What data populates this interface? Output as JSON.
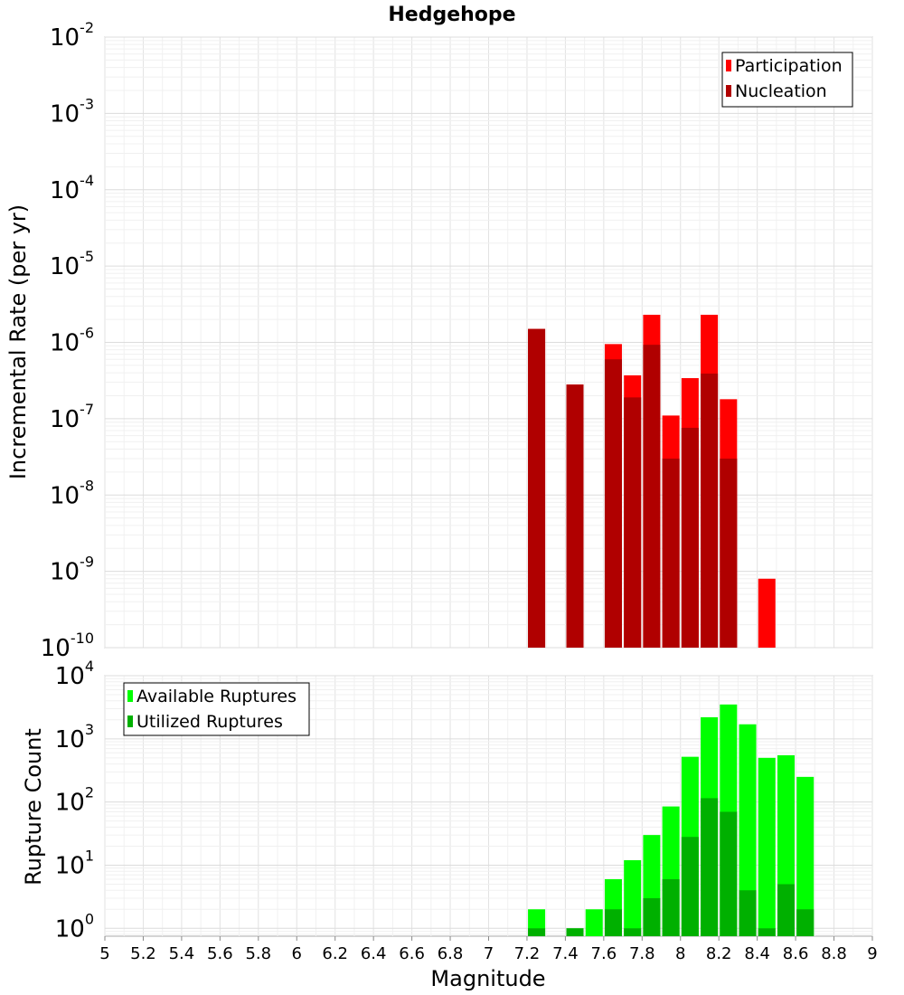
{
  "chart_data": [
    {
      "type": "bar",
      "title": "Hedgehope",
      "xlabel": "",
      "ylabel": "Incremental Rate (per yr)",
      "yscale": "log",
      "ylim": [
        1e-10,
        0.01
      ],
      "xlim": [
        5,
        9
      ],
      "y_ticks": [
        {
          "base": "10",
          "exp": "-2",
          "value": 0.01
        },
        {
          "base": "10",
          "exp": "-3",
          "value": 0.001
        },
        {
          "base": "10",
          "exp": "-4",
          "value": 0.0001
        },
        {
          "base": "10",
          "exp": "-5",
          "value": 1e-05
        },
        {
          "base": "10",
          "exp": "-6",
          "value": 1e-06
        },
        {
          "base": "10",
          "exp": "-7",
          "value": 1e-07
        },
        {
          "base": "10",
          "exp": "-8",
          "value": 1e-08
        },
        {
          "base": "10",
          "exp": "-9",
          "value": 1e-09
        },
        {
          "base": "10",
          "exp": "-10",
          "value": 1e-10
        }
      ],
      "grid": true,
      "legend_position": "top-right",
      "legend": [
        {
          "label": "Participation",
          "color": "#ff0000"
        },
        {
          "label": "Nucleation",
          "color": "#b00000"
        }
      ],
      "series": [
        {
          "name": "Participation",
          "color": "#ff0000",
          "points": [
            {
              "x": 7.25,
              "y": 1.5e-06
            },
            {
              "x": 7.45,
              "y": 2.8e-07
            },
            {
              "x": 7.65,
              "y": 9.5e-07
            },
            {
              "x": 7.75,
              "y": 3.7e-07
            },
            {
              "x": 7.85,
              "y": 2.3e-06
            },
            {
              "x": 7.95,
              "y": 1.1e-07
            },
            {
              "x": 8.05,
              "y": 3.4e-07
            },
            {
              "x": 8.15,
              "y": 2.3e-06
            },
            {
              "x": 8.25,
              "y": 1.8e-07
            },
            {
              "x": 8.45,
              "y": 8e-10
            }
          ]
        },
        {
          "name": "Nucleation",
          "color": "#b00000",
          "points": [
            {
              "x": 7.25,
              "y": 1.5e-06
            },
            {
              "x": 7.45,
              "y": 2.8e-07
            },
            {
              "x": 7.65,
              "y": 6e-07
            },
            {
              "x": 7.75,
              "y": 1.9e-07
            },
            {
              "x": 7.85,
              "y": 9.3e-07
            },
            {
              "x": 7.95,
              "y": 3e-08
            },
            {
              "x": 8.05,
              "y": 7.6e-08
            },
            {
              "x": 8.15,
              "y": 3.9e-07
            },
            {
              "x": 8.25,
              "y": 3e-08
            }
          ]
        }
      ]
    },
    {
      "type": "bar",
      "title": "",
      "xlabel": "Magnitude",
      "ylabel": "Rupture Count",
      "yscale": "log",
      "ylim": [
        0.75,
        10000
      ],
      "xlim": [
        5,
        9
      ],
      "x_ticks": [
        "5",
        "5.2",
        "5.4",
        "5.6",
        "5.8",
        "6",
        "6.2",
        "6.4",
        "6.6",
        "6.8",
        "7",
        "7.2",
        "7.4",
        "7.6",
        "7.8",
        "8",
        "8.2",
        "8.4",
        "8.6",
        "8.8",
        "9"
      ],
      "y_ticks": [
        {
          "base": "10",
          "exp": "4",
          "value": 10000
        },
        {
          "base": "10",
          "exp": "3",
          "value": 1000
        },
        {
          "base": "10",
          "exp": "2",
          "value": 100
        },
        {
          "base": "10",
          "exp": "1",
          "value": 10
        },
        {
          "base": "10",
          "exp": "0",
          "value": 1
        }
      ],
      "grid": true,
      "legend_position": "top-left",
      "legend": [
        {
          "label": "Available Ruptures",
          "color": "#00ff00"
        },
        {
          "label": "Utilized Ruptures",
          "color": "#00b000"
        }
      ],
      "series": [
        {
          "name": "Available Ruptures",
          "color": "#00ff00",
          "points": [
            {
              "x": 7.25,
              "y": 2
            },
            {
              "x": 7.45,
              "y": 1
            },
            {
              "x": 7.55,
              "y": 2
            },
            {
              "x": 7.65,
              "y": 6
            },
            {
              "x": 7.75,
              "y": 12
            },
            {
              "x": 7.85,
              "y": 30
            },
            {
              "x": 7.95,
              "y": 85
            },
            {
              "x": 8.05,
              "y": 520
            },
            {
              "x": 8.15,
              "y": 2200
            },
            {
              "x": 8.25,
              "y": 3500
            },
            {
              "x": 8.35,
              "y": 1700
            },
            {
              "x": 8.45,
              "y": 500
            },
            {
              "x": 8.55,
              "y": 550
            },
            {
              "x": 8.65,
              "y": 250
            }
          ]
        },
        {
          "name": "Utilized Ruptures",
          "color": "#00b000",
          "points": [
            {
              "x": 7.25,
              "y": 1
            },
            {
              "x": 7.45,
              "y": 1
            },
            {
              "x": 7.65,
              "y": 2
            },
            {
              "x": 7.75,
              "y": 1
            },
            {
              "x": 7.85,
              "y": 3
            },
            {
              "x": 7.95,
              "y": 6
            },
            {
              "x": 8.05,
              "y": 28
            },
            {
              "x": 8.15,
              "y": 115
            },
            {
              "x": 8.25,
              "y": 70
            },
            {
              "x": 8.35,
              "y": 4
            },
            {
              "x": 8.45,
              "y": 1
            },
            {
              "x": 8.55,
              "y": 5
            },
            {
              "x": 8.65,
              "y": 2
            }
          ]
        }
      ]
    }
  ]
}
